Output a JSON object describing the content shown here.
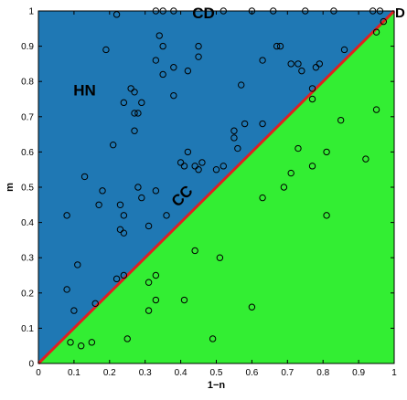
{
  "chart_data": {
    "type": "scatter",
    "title": "",
    "xlabel": "1−n",
    "ylabel": "m",
    "xlim": [
      0,
      1
    ],
    "ylim": [
      0,
      1
    ],
    "x_ticks": [
      0,
      0.1,
      0.2,
      0.3,
      0.4,
      0.5,
      0.6,
      0.7,
      0.8,
      0.9,
      1
    ],
    "y_ticks": [
      0,
      0.1,
      0.2,
      0.3,
      0.4,
      0.5,
      0.6,
      0.7,
      0.8,
      0.9,
      1
    ],
    "x_tick_labels": [
      "0",
      "0.1",
      "0.2",
      "0.3",
      "0.4",
      "0.5",
      "0.6",
      "0.7",
      "0.8",
      "0.9",
      "1"
    ],
    "y_tick_labels": [
      "0",
      "0.1",
      "0.2",
      "0.3",
      "0.4",
      "0.5",
      "0.6",
      "0.7",
      "0.8",
      "0.9",
      "1"
    ],
    "grid": false,
    "regions": [
      {
        "label": "HN",
        "fill": "#1f78b4",
        "vertices": [
          [
            0,
            0
          ],
          [
            0,
            1
          ],
          [
            1,
            1
          ]
        ],
        "label_pos": [
          0.13,
          0.76
        ]
      },
      {
        "label": "",
        "fill": "#33ee33",
        "vertices": [
          [
            0,
            0
          ],
          [
            1,
            0
          ],
          [
            1,
            1
          ]
        ]
      }
    ],
    "annotations": [
      {
        "text": "CD",
        "x": 0.5,
        "y": 1.0
      },
      {
        "text": "CC",
        "x": 0.45,
        "y": 0.48
      },
      {
        "text": "D",
        "x": 1.02,
        "y": 1.0
      }
    ],
    "boundary_line": {
      "x": [
        0,
        1
      ],
      "y": [
        0,
        1
      ],
      "color": "#e02020"
    },
    "points": [
      [
        0.22,
        0.99
      ],
      [
        0.33,
        1.0
      ],
      [
        0.35,
        1.0
      ],
      [
        0.38,
        1.0
      ],
      [
        0.52,
        1.0
      ],
      [
        0.6,
        1.0
      ],
      [
        0.66,
        1.0
      ],
      [
        0.75,
        1.0
      ],
      [
        0.83,
        1.0
      ],
      [
        0.94,
        1.0
      ],
      [
        0.96,
        1.0
      ],
      [
        0.19,
        0.89
      ],
      [
        0.34,
        0.93
      ],
      [
        0.35,
        0.9
      ],
      [
        0.33,
        0.86
      ],
      [
        0.35,
        0.82
      ],
      [
        0.42,
        0.83
      ],
      [
        0.45,
        0.9
      ],
      [
        0.45,
        0.87
      ],
      [
        0.38,
        0.84
      ],
      [
        0.38,
        0.76
      ],
      [
        0.26,
        0.78
      ],
      [
        0.27,
        0.77
      ],
      [
        0.24,
        0.74
      ],
      [
        0.27,
        0.71
      ],
      [
        0.28,
        0.71
      ],
      [
        0.29,
        0.74
      ],
      [
        0.27,
        0.66
      ],
      [
        0.21,
        0.62
      ],
      [
        0.42,
        0.6
      ],
      [
        0.4,
        0.57
      ],
      [
        0.41,
        0.56
      ],
      [
        0.44,
        0.56
      ],
      [
        0.46,
        0.57
      ],
      [
        0.45,
        0.55
      ],
      [
        0.5,
        0.55
      ],
      [
        0.52,
        0.56
      ],
      [
        0.55,
        0.66
      ],
      [
        0.55,
        0.64
      ],
      [
        0.56,
        0.61
      ],
      [
        0.58,
        0.68
      ],
      [
        0.57,
        0.79
      ],
      [
        0.63,
        0.68
      ],
      [
        0.63,
        0.86
      ],
      [
        0.67,
        0.9
      ],
      [
        0.68,
        0.9
      ],
      [
        0.71,
        0.85
      ],
      [
        0.73,
        0.85
      ],
      [
        0.74,
        0.83
      ],
      [
        0.78,
        0.84
      ],
      [
        0.79,
        0.85
      ],
      [
        0.77,
        0.78
      ],
      [
        0.86,
        0.89
      ],
      [
        0.95,
        0.94
      ],
      [
        0.97,
        0.97
      ],
      [
        0.13,
        0.53
      ],
      [
        0.18,
        0.49
      ],
      [
        0.17,
        0.45
      ],
      [
        0.23,
        0.45
      ],
      [
        0.24,
        0.42
      ],
      [
        0.23,
        0.38
      ],
      [
        0.24,
        0.37
      ],
      [
        0.28,
        0.5
      ],
      [
        0.29,
        0.47
      ],
      [
        0.31,
        0.39
      ],
      [
        0.33,
        0.49
      ],
      [
        0.36,
        0.42
      ],
      [
        0.08,
        0.42
      ],
      [
        0.11,
        0.28
      ],
      [
        0.08,
        0.21
      ],
      [
        0.1,
        0.15
      ],
      [
        0.16,
        0.17
      ],
      [
        0.22,
        0.24
      ],
      [
        0.24,
        0.25
      ],
      [
        0.33,
        0.25
      ],
      [
        0.31,
        0.23
      ],
      [
        0.33,
        0.18
      ],
      [
        0.31,
        0.15
      ],
      [
        0.09,
        0.06
      ],
      [
        0.12,
        0.05
      ],
      [
        0.15,
        0.06
      ],
      [
        0.25,
        0.07
      ],
      [
        0.41,
        0.18
      ],
      [
        0.44,
        0.32
      ],
      [
        0.51,
        0.3
      ],
      [
        0.49,
        0.07
      ],
      [
        0.6,
        0.16
      ],
      [
        0.63,
        0.47
      ],
      [
        0.69,
        0.5
      ],
      [
        0.71,
        0.54
      ],
      [
        0.73,
        0.61
      ],
      [
        0.77,
        0.56
      ],
      [
        0.81,
        0.6
      ],
      [
        0.77,
        0.75
      ],
      [
        0.85,
        0.69
      ],
      [
        0.81,
        0.42
      ],
      [
        0.92,
        0.58
      ],
      [
        0.95,
        0.72
      ]
    ]
  }
}
